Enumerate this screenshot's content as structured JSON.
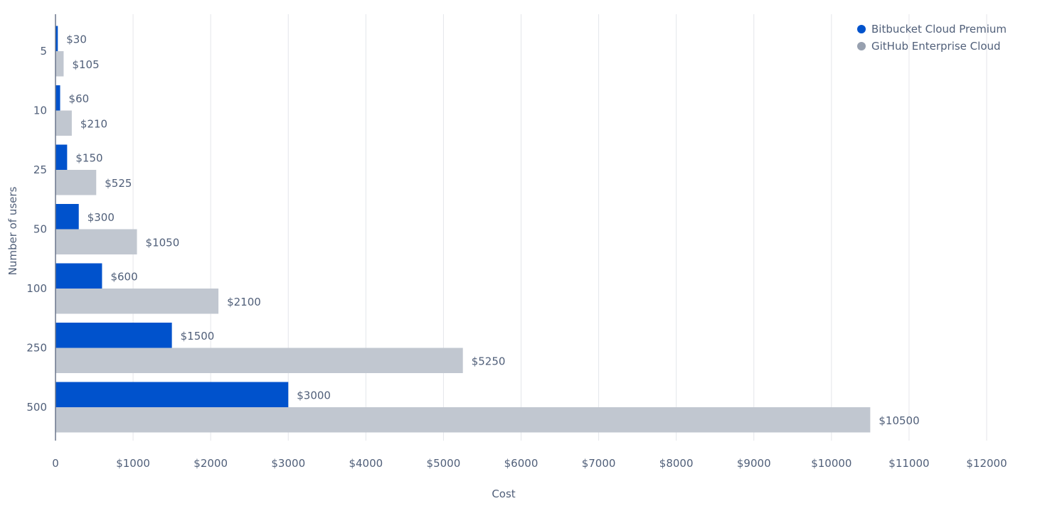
{
  "chart_data": {
    "type": "bar",
    "orientation": "horizontal",
    "categories": [
      "5",
      "10",
      "25",
      "50",
      "100",
      "250",
      "500"
    ],
    "series": [
      {
        "name": "Bitbucket Cloud Premium",
        "color": "#0052CC",
        "values": [
          30,
          60,
          150,
          300,
          600,
          1500,
          3000
        ],
        "labels": [
          "$30",
          "$60",
          "$150",
          "$300",
          "$600",
          "$1500",
          "$3000"
        ]
      },
      {
        "name": "GitHub Enterprise Cloud",
        "color": "#C1C7D0",
        "legend_color": "#97A0AF",
        "values": [
          105,
          210,
          525,
          1050,
          2100,
          5250,
          10500
        ],
        "labels": [
          "$105",
          "$210",
          "$525",
          "$1050",
          "$2100",
          "$5250",
          "$10500"
        ]
      }
    ],
    "xlabel": "Cost",
    "ylabel": "Number of users",
    "xlim": [
      0,
      12000
    ],
    "xticks": [
      0,
      1000,
      2000,
      3000,
      4000,
      5000,
      6000,
      7000,
      8000,
      9000,
      10000,
      11000,
      12000
    ],
    "xtick_labels": [
      "0",
      "$1000",
      "$2000",
      "$3000",
      "$4000",
      "$5000",
      "$6000",
      "$7000",
      "$8000",
      "$9000",
      "$10000",
      "$11000",
      "$12000"
    ],
    "grid": "vertical",
    "legend": "top-right"
  }
}
